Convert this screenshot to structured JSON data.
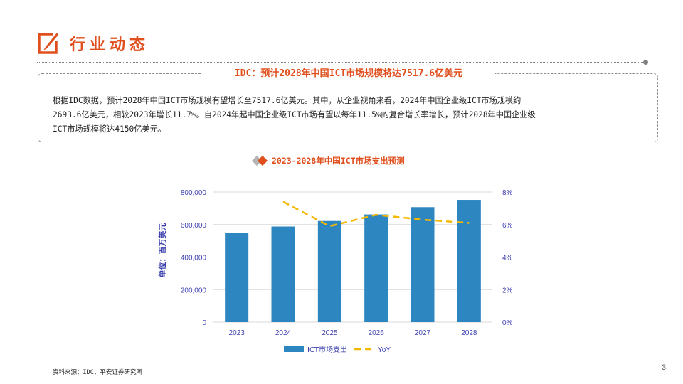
{
  "header": {
    "title": "行业动态",
    "icon": "edit-icon"
  },
  "summary": {
    "title": "IDC：预计2028年中国ICT市场规模将达7517.6亿美元",
    "lines": [
      "根据IDC数据，预计2028年中国ICT市场规模有望增长至7517.6亿美元。其中，从企业视角来看，2024年中国企业级ICT市场规模约",
      "2693.6亿美元，相较2023年增长11.7%。自2024年起中国企业级ICT市场有望以每年11.5%的复合增长率增长，预计2028年中国企业级",
      "ICT市场规模将达4150亿美元。"
    ]
  },
  "chart_heading": "2023-2028年中国ICT市场支出预测",
  "chart_data": {
    "type": "bar",
    "categories": [
      "2023",
      "2024",
      "2025",
      "2026",
      "2027",
      "2028"
    ],
    "series": [
      {
        "name": "ICT市场支出",
        "type": "bar",
        "axis": "left",
        "color": "#2E86C1",
        "values": [
          547000,
          588000,
          622000,
          662000,
          707000,
          751760
        ]
      },
      {
        "name": "YoY",
        "type": "line",
        "axis": "right",
        "style": "dashed",
        "color": "#F5B800",
        "values": [
          null,
          0.074,
          0.059,
          0.066,
          0.063,
          0.061
        ]
      }
    ],
    "ylabel": "单位：百万美元",
    "ylim": [
      0,
      800000
    ],
    "yticks": [
      "0",
      "200,000",
      "400,000",
      "600,000",
      "800,000"
    ],
    "y2lim": [
      0,
      0.08
    ],
    "y2ticks": [
      "0%",
      "2%",
      "4%",
      "6%",
      "8%"
    ],
    "grid": true,
    "legend_position": "bottom"
  },
  "colors": {
    "accent": "#E0501E",
    "bar": "#2E86C1",
    "line": "#F5B800",
    "axis_text": "#3B3EAD"
  },
  "footer": {
    "source": "资料来源：IDC，平安证券研究所",
    "page_number": "3"
  }
}
